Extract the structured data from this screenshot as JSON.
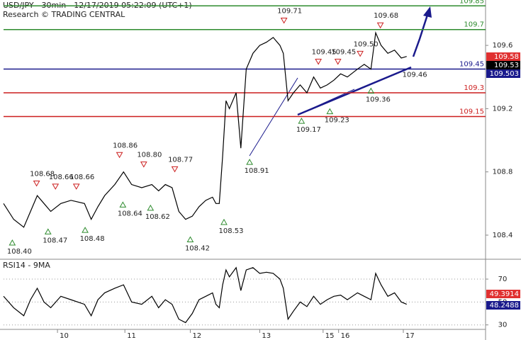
{
  "chart_data": [
    {
      "type": "line",
      "title": "USD/JPY - 30min - 12/17/2019 05:22:09 (UTC+1)",
      "subtitle": "Research © TRADING CENTRAL",
      "x": [
        0.2,
        0.35,
        0.5,
        0.6,
        0.7,
        0.8,
        0.9,
        1.05,
        1.2,
        1.4,
        1.5,
        1.6,
        1.7,
        1.85,
        1.98,
        2.1,
        2.25,
        2.4,
        2.5,
        2.6,
        2.7,
        2.8,
        2.9,
        3.0,
        3.1,
        3.2,
        3.3,
        3.35,
        3.4,
        3.45,
        3.5,
        3.55,
        3.65,
        3.72,
        3.8,
        3.9,
        4.0,
        4.1,
        4.2,
        4.3,
        4.35,
        4.42,
        4.5,
        4.6,
        4.7,
        4.8,
        4.9,
        5.0,
        5.1,
        5.2,
        5.3,
        5.45,
        5.55,
        5.65,
        5.72,
        5.8,
        5.9,
        6.0,
        6.1,
        6.18
      ],
      "values": [
        108.6,
        108.5,
        108.45,
        108.55,
        108.65,
        108.6,
        108.55,
        108.6,
        108.62,
        108.6,
        108.5,
        108.58,
        108.65,
        108.72,
        108.8,
        108.72,
        108.7,
        108.72,
        108.68,
        108.72,
        108.7,
        108.55,
        108.5,
        108.52,
        108.58,
        108.62,
        108.64,
        108.6,
        108.6,
        108.9,
        109.25,
        109.2,
        109.3,
        108.95,
        109.45,
        109.55,
        109.6,
        109.62,
        109.65,
        109.6,
        109.55,
        109.25,
        109.3,
        109.35,
        109.3,
        109.4,
        109.33,
        109.35,
        109.38,
        109.42,
        109.4,
        109.45,
        109.48,
        109.45,
        109.68,
        109.6,
        109.55,
        109.57,
        109.52,
        109.53
      ],
      "color": "#000000",
      "xlim": [
        0.2,
        7.35
      ],
      "ylim": [
        108.252,
        109.887
      ],
      "yticks": [
        108.4,
        108.8,
        109.2,
        109.6
      ],
      "levels": [
        {
          "value": 109.85,
          "color": "#2e8b2e"
        },
        {
          "value": 109.7,
          "color": "#2e8b2e"
        },
        {
          "value": 109.45,
          "color": "#1a1a8c"
        },
        {
          "value": 109.3,
          "color": "#cc1f1f"
        },
        {
          "value": 109.15,
          "color": "#cc1f1f"
        }
      ],
      "price_tags": [
        {
          "value": 109.58,
          "color": "#e03030"
        },
        {
          "value": 109.53,
          "color": "#000000"
        },
        {
          "value": 109.503,
          "color": "#1a1a8c"
        }
      ],
      "annotations": [
        {
          "value": 108.4,
          "label": "108.40",
          "x": 0.33,
          "kind": "low"
        },
        {
          "value": 108.68,
          "label": "108.68",
          "x": 0.69,
          "kind": "high"
        },
        {
          "value": 108.47,
          "label": "108.47",
          "x": 0.86,
          "kind": "low"
        },
        {
          "value": 108.66,
          "label": "108.66",
          "x": 0.97,
          "kind": "high"
        },
        {
          "value": 108.66,
          "label": "108.66",
          "x": 1.28,
          "kind": "high"
        },
        {
          "value": 108.48,
          "label": "108.48",
          "x": 1.41,
          "kind": "low"
        },
        {
          "value": 108.86,
          "label": "108.86",
          "x": 1.92,
          "kind": "high"
        },
        {
          "value": 108.64,
          "label": "108.64",
          "x": 1.97,
          "kind": "low"
        },
        {
          "value": 108.8,
          "label": "108.80",
          "x": 2.28,
          "kind": "high"
        },
        {
          "value": 108.62,
          "label": "108.62",
          "x": 2.38,
          "kind": "low"
        },
        {
          "value": 108.77,
          "label": "108.77",
          "x": 2.74,
          "kind": "high"
        },
        {
          "value": 108.42,
          "label": "108.42",
          "x": 2.97,
          "kind": "low"
        },
        {
          "value": 108.53,
          "label": "108.53",
          "x": 3.47,
          "kind": "low"
        },
        {
          "value": 108.91,
          "label": "108.91",
          "x": 3.85,
          "kind": "low"
        },
        {
          "value": 109.71,
          "label": "109.71",
          "x": 4.36,
          "kind": "high"
        },
        {
          "value": 109.17,
          "label": "109.17",
          "x": 4.62,
          "kind": "low"
        },
        {
          "value": 109.45,
          "label": "109.45",
          "x": 4.87,
          "kind": "high"
        },
        {
          "value": 109.23,
          "label": "109.23",
          "x": 5.04,
          "kind": "low"
        },
        {
          "value": 109.45,
          "label": "109.45",
          "x": 5.16,
          "kind": "high"
        },
        {
          "value": 109.5,
          "label": "109.50",
          "x": 5.49,
          "kind": "high"
        },
        {
          "value": 109.36,
          "label": "109.36",
          "x": 5.65,
          "kind": "low"
        },
        {
          "value": 109.68,
          "label": "109.68",
          "x": 5.79,
          "kind": "high"
        },
        {
          "value": 109.46,
          "label": "109.46",
          "x": 6.3,
          "kind": "text"
        }
      ]
    },
    {
      "type": "line",
      "title": "RSI14 - 9MA",
      "x": [
        0.2,
        0.35,
        0.5,
        0.6,
        0.7,
        0.8,
        0.9,
        1.05,
        1.2,
        1.4,
        1.5,
        1.6,
        1.7,
        1.85,
        1.98,
        2.1,
        2.25,
        2.4,
        2.5,
        2.6,
        2.7,
        2.8,
        2.9,
        3.0,
        3.1,
        3.2,
        3.3,
        3.35,
        3.4,
        3.45,
        3.5,
        3.55,
        3.65,
        3.72,
        3.8,
        3.9,
        4.0,
        4.1,
        4.2,
        4.3,
        4.35,
        4.42,
        4.5,
        4.6,
        4.7,
        4.8,
        4.9,
        5.0,
        5.1,
        5.2,
        5.3,
        5.45,
        5.55,
        5.65,
        5.72,
        5.8,
        5.9,
        6.0,
        6.1,
        6.18
      ],
      "values": [
        55,
        45,
        38,
        52,
        62,
        50,
        45,
        55,
        52,
        48,
        38,
        52,
        58,
        62,
        65,
        50,
        48,
        55,
        45,
        52,
        48,
        35,
        32,
        40,
        52,
        55,
        58,
        48,
        45,
        65,
        78,
        72,
        80,
        60,
        78,
        80,
        75,
        76,
        75,
        70,
        62,
        35,
        42,
        50,
        46,
        55,
        48,
        52,
        55,
        56,
        52,
        58,
        55,
        52,
        75,
        65,
        55,
        58,
        50,
        48
      ],
      "color": "#000000",
      "xlim": [
        0.2,
        7.35
      ],
      "ylim": [
        26.1,
        86.1
      ],
      "yticks": [
        30,
        50,
        70
      ],
      "xticks": [
        {
          "value": 1,
          "label": "10"
        },
        {
          "value": 2,
          "label": "11"
        },
        {
          "value": 2.97,
          "label": "12"
        },
        {
          "value": 4,
          "label": "13"
        },
        {
          "value": 4.94,
          "label": "15"
        },
        {
          "value": 5.17,
          "label": "16"
        },
        {
          "value": 6.13,
          "label": "17"
        }
      ],
      "price_tags": [
        {
          "value": 49.3914,
          "color": "#e03030"
        },
        {
          "value": 48.2488,
          "color": "#1a1a8c"
        }
      ]
    }
  ]
}
